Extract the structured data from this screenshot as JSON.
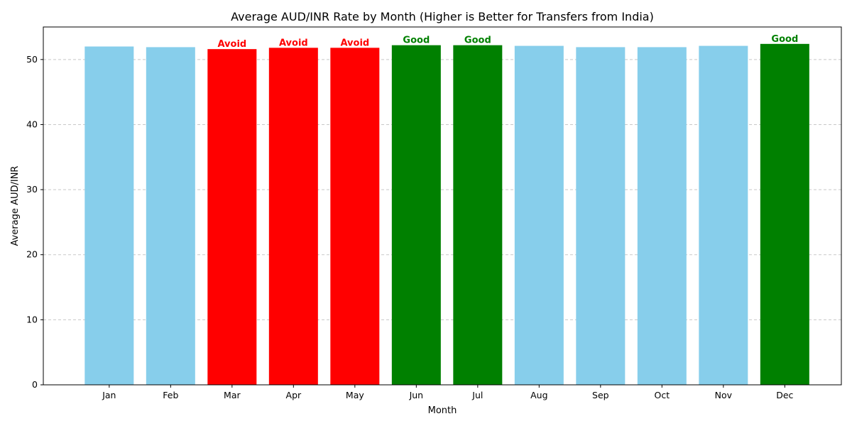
{
  "chart_data": {
    "type": "bar",
    "title": "Average AUD/INR Rate by Month (Higher is Better for Transfers from India)",
    "xlabel": "Month",
    "ylabel": "Average AUD/INR",
    "categories": [
      "Jan",
      "Feb",
      "Mar",
      "Apr",
      "May",
      "Jun",
      "Jul",
      "Aug",
      "Sep",
      "Oct",
      "Nov",
      "Dec"
    ],
    "values": [
      52.0,
      51.9,
      51.6,
      51.8,
      51.8,
      52.2,
      52.2,
      52.1,
      51.9,
      51.9,
      52.1,
      52.4
    ],
    "bar_colors": [
      "#87CEEB",
      "#87CEEB",
      "#FF0000",
      "#FF0000",
      "#FF0000",
      "#008000",
      "#008000",
      "#87CEEB",
      "#87CEEB",
      "#87CEEB",
      "#87CEEB",
      "#008000"
    ],
    "annotations": [
      "",
      "",
      "Avoid",
      "Avoid",
      "Avoid",
      "Good",
      "Good",
      "",
      "",
      "",
      "",
      "Good"
    ],
    "annotation_colors": {
      "Avoid": "#FF0000",
      "Good": "#008000"
    },
    "ylim": [
      0,
      55
    ],
    "yticks": [
      0,
      10,
      20,
      30,
      40,
      50
    ],
    "grid": "y-dashed",
    "legend": "none"
  }
}
